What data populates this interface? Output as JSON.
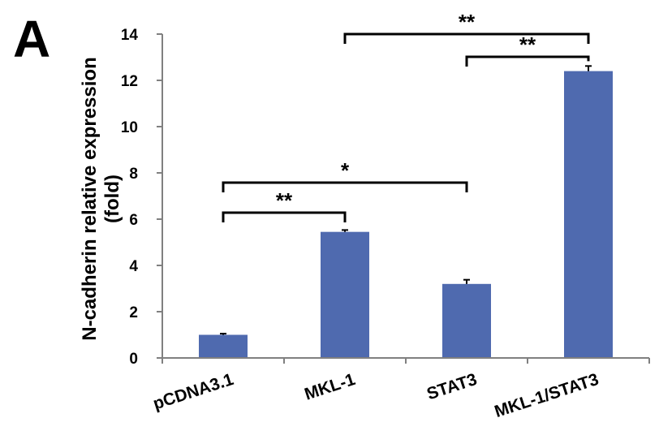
{
  "chart_data": {
    "type": "bar",
    "panel_label": "A",
    "ylabel_line1": "N-cadherin relative expression",
    "ylabel_line2": "(fold)",
    "xlabel": "",
    "ylim": [
      0,
      14
    ],
    "yticks": [
      0,
      2,
      4,
      6,
      8,
      10,
      12,
      14
    ],
    "categories": [
      "pCDNA3.1",
      "MKL-1",
      "STAT3",
      "MKL-1/STAT3"
    ],
    "values": [
      1.0,
      5.45,
      3.2,
      12.4
    ],
    "errors": [
      0.05,
      0.08,
      0.18,
      0.22
    ],
    "bar_color": "#4f6aaf",
    "significance": [
      {
        "from": 0,
        "to": 1,
        "label": "**"
      },
      {
        "from": 0,
        "to": 2,
        "label": "*"
      },
      {
        "from": 1,
        "to": 3,
        "label": "**"
      },
      {
        "from": 2,
        "to": 3,
        "label": "**"
      }
    ]
  }
}
